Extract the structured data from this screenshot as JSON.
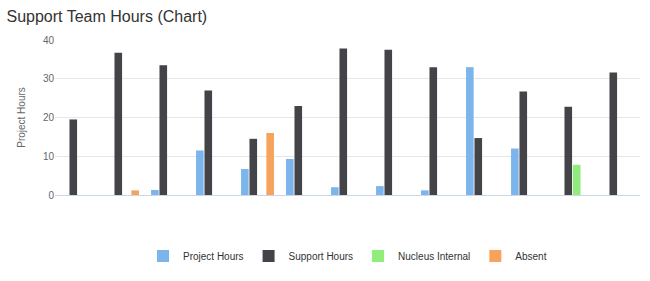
{
  "chart_data": {
    "type": "bar",
    "title": "Support Team Hours (Chart)",
    "y_label": "Project Hours",
    "categories": [
      null,
      null,
      null,
      null,
      null,
      null,
      null,
      null,
      null,
      null,
      null,
      null,
      null
    ],
    "series": [
      {
        "name": "Project Hours",
        "color": "#7cb5ec",
        "values": [
          0,
          0,
          1.3,
          11.5,
          6.7,
          9.3,
          2,
          2.3,
          1.2,
          33,
          12,
          0,
          0
        ]
      },
      {
        "name": "Support Hours",
        "color": "#434348",
        "values": [
          19.5,
          36.7,
          33.5,
          27,
          14.5,
          23,
          37.8,
          37.5,
          33,
          14.7,
          26.7,
          22.8,
          31.6
        ]
      },
      {
        "name": "Nucleus Internal",
        "color": "#90ed7d",
        "values": [
          0,
          0,
          0,
          0,
          0,
          0,
          0,
          0,
          0,
          0,
          0,
          7.8,
          0
        ]
      },
      {
        "name": "Absent",
        "color": "#f7a35c",
        "values": [
          0,
          1.2,
          0,
          0,
          16,
          0,
          0,
          0,
          0,
          0,
          0,
          0,
          0
        ]
      }
    ],
    "ylim": [
      0,
      40
    ],
    "yticks": [
      0,
      10,
      20,
      30,
      40
    ],
    "grid": true,
    "legend": "bottom"
  }
}
